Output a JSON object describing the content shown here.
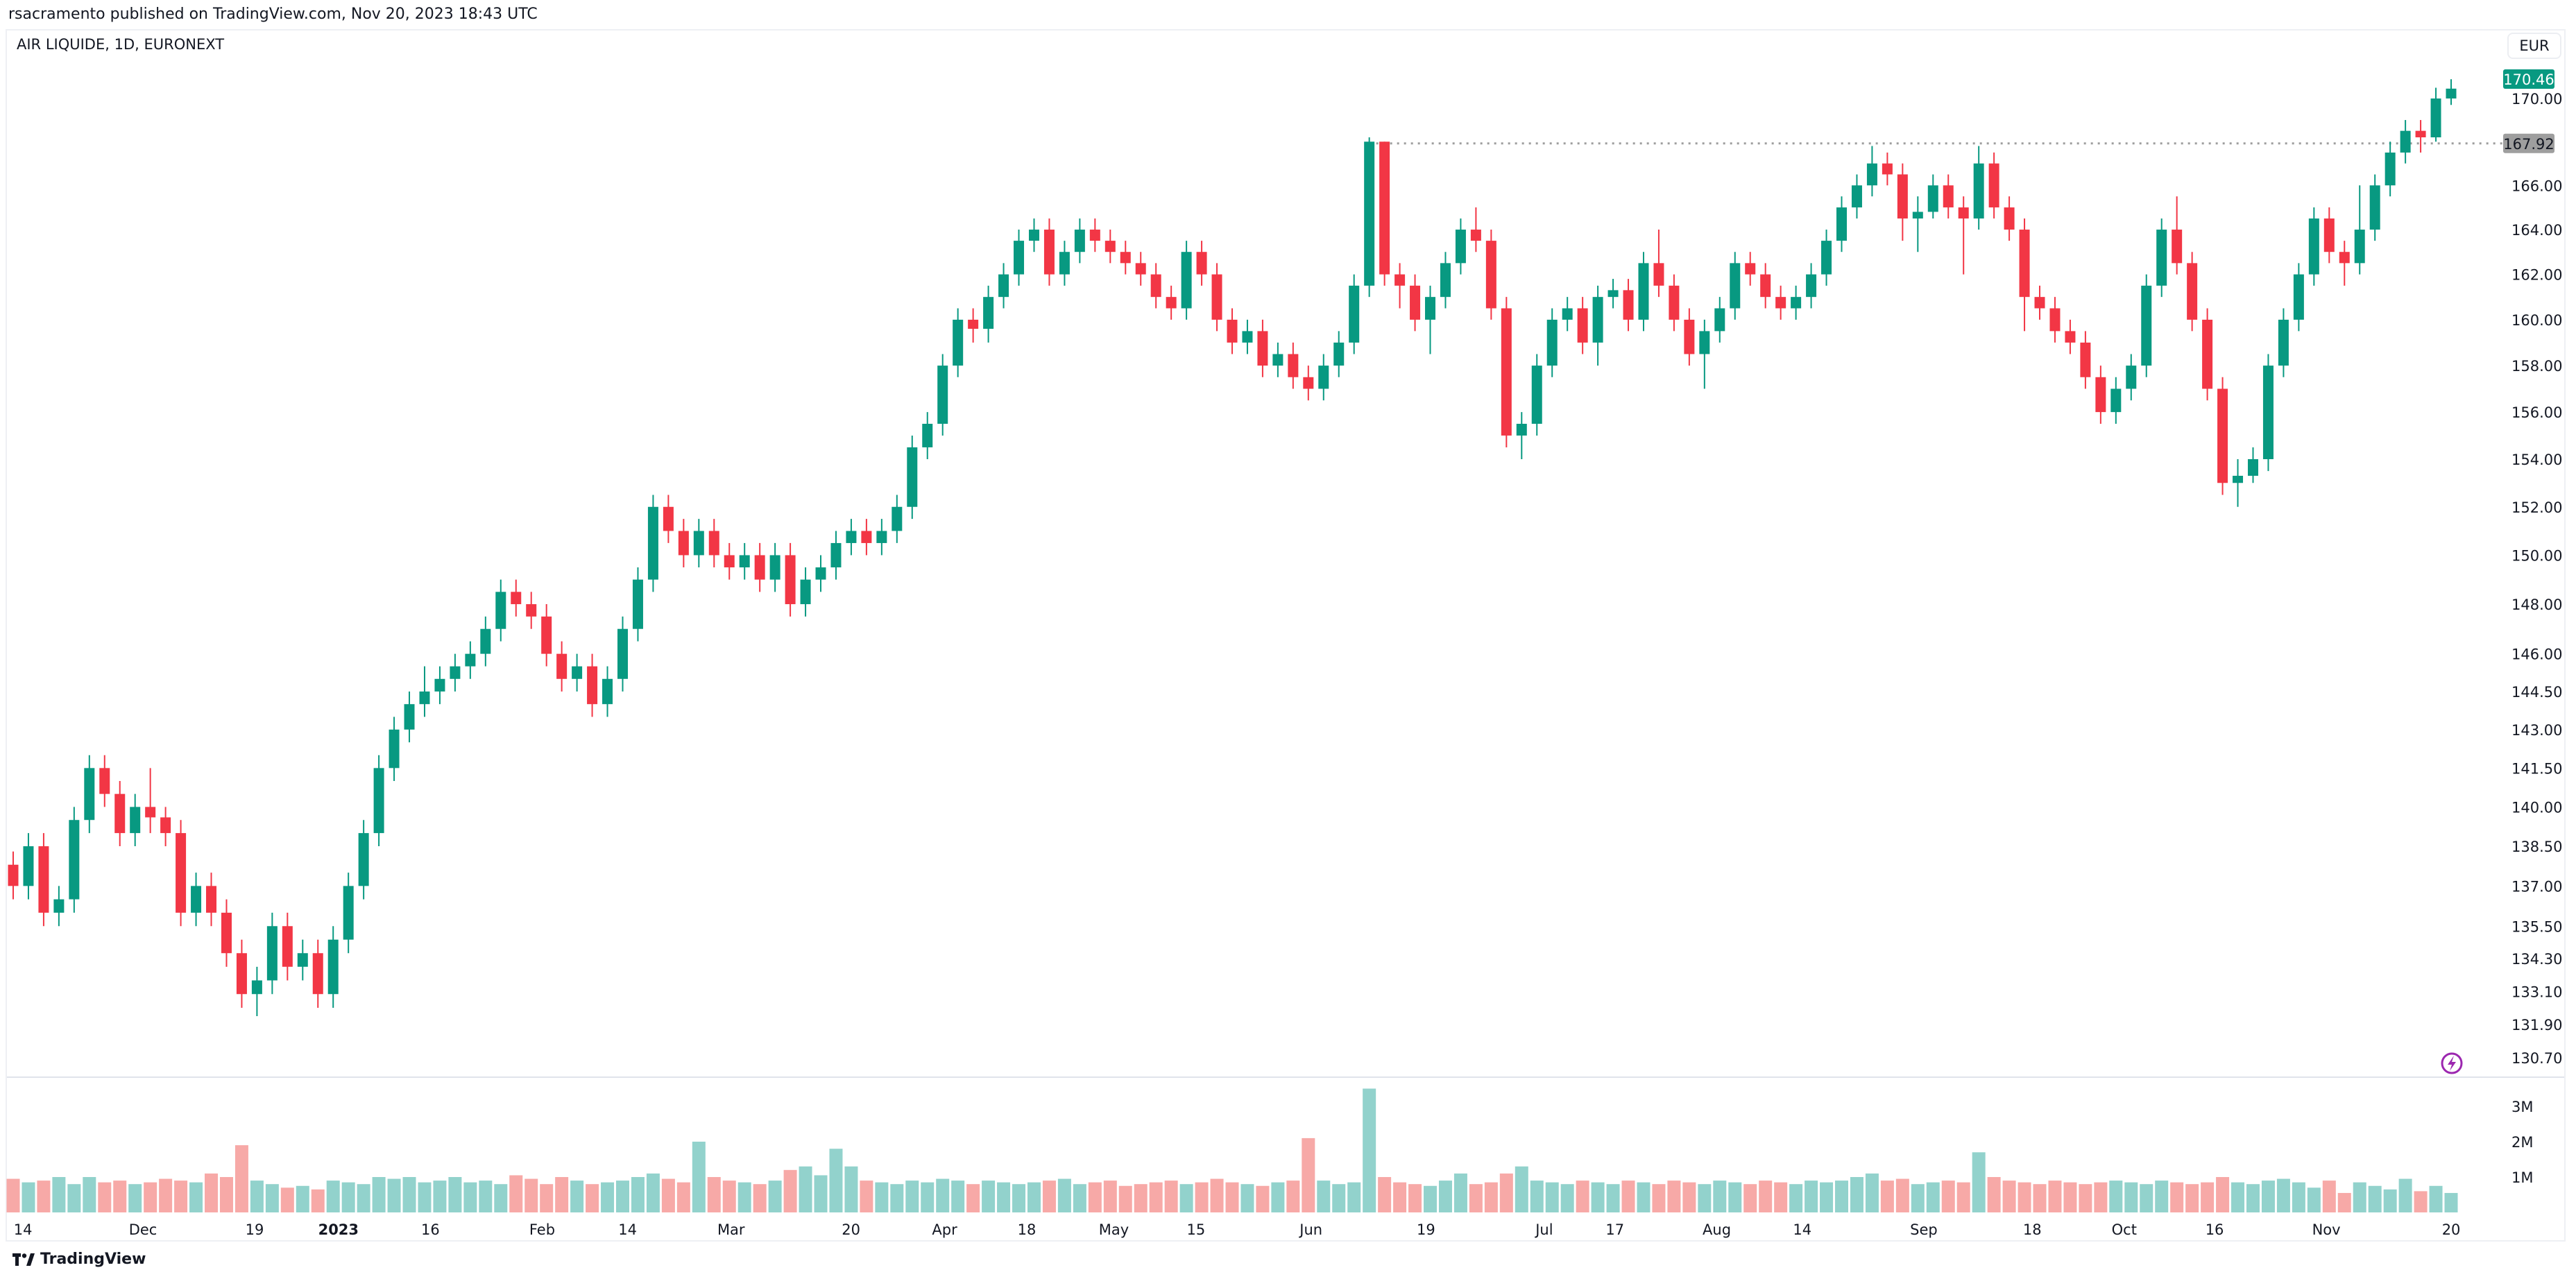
{
  "header": {
    "publisher_line": "rsacramento published on TradingView.com, Nov 20, 2023 18:43 UTC",
    "symbol_line": "AIR LIQUIDE, 1D, EURONEXT",
    "currency": "EUR"
  },
  "footer": {
    "brand": "TradingView",
    "logo_icon": "tradingview-logo-icon"
  },
  "colors": {
    "up": "#089981",
    "down": "#f23645",
    "volume_up": "#92d2cc",
    "volume_down": "#f7a9a7",
    "last_price_label": "#089981",
    "level_label": "#9e9e9e",
    "alert_icon": "#9c27b0"
  },
  "chart_data": {
    "type": "candlestick",
    "title": "AIR LIQUIDE, 1D, EURONEXT",
    "price_scale": "log",
    "ylim": [
      130.2,
      171.3
    ],
    "grid": false,
    "price_ticks": [
      "170.00",
      "166.00",
      "164.00",
      "162.00",
      "160.00",
      "158.00",
      "156.00",
      "154.00",
      "152.00",
      "150.00",
      "148.00",
      "146.00",
      "144.50",
      "143.00",
      "141.50",
      "140.00",
      "138.50",
      "137.00",
      "135.50",
      "134.30",
      "133.10",
      "131.90",
      "130.70"
    ],
    "last_price": 170.46,
    "horizontal_level": 167.92,
    "time_ticks": [
      "14",
      "Dec",
      "19",
      "2023",
      "16",
      "Feb",
      "14",
      "Mar",
      "20",
      "Apr",
      "18",
      "May",
      "15",
      "Jun",
      "19",
      "Jul",
      "17",
      "Aug",
      "14",
      "Sep",
      "18",
      "Oct",
      "16",
      "Nov",
      "20"
    ],
    "volume_ticks": [
      "3M",
      "2M",
      "1M"
    ],
    "candles_ohlc": [
      [
        137.8,
        138.3,
        136.5,
        137
      ],
      [
        137,
        139,
        136.5,
        138.5
      ],
      [
        138.5,
        139,
        135.5,
        136
      ],
      [
        136,
        137,
        135.5,
        136.5
      ],
      [
        136.5,
        140,
        136,
        139.5
      ],
      [
        139.5,
        142,
        139,
        141.5
      ],
      [
        141.5,
        142,
        140,
        140.5
      ],
      [
        140.5,
        141,
        138.5,
        139
      ],
      [
        139,
        140.5,
        138.5,
        140
      ],
      [
        140,
        141.5,
        139,
        139.6
      ],
      [
        139.6,
        140,
        138.5,
        139
      ],
      [
        139,
        139.5,
        135.5,
        136
      ],
      [
        136,
        137.5,
        135.5,
        137
      ],
      [
        137,
        137.5,
        135.5,
        136
      ],
      [
        136,
        136.5,
        134,
        134.5
      ],
      [
        134.5,
        135,
        132.5,
        133
      ],
      [
        133,
        134,
        132.2,
        133.5
      ],
      [
        133.5,
        136,
        133,
        135.5
      ],
      [
        135.5,
        136,
        133.5,
        134
      ],
      [
        134,
        135,
        133.5,
        134.5
      ],
      [
        134.5,
        135,
        132.5,
        133
      ],
      [
        133,
        135.5,
        132.5,
        135
      ],
      [
        135,
        137.5,
        134.5,
        137
      ],
      [
        137,
        139.5,
        136.5,
        139
      ],
      [
        139,
        142,
        138.5,
        141.5
      ],
      [
        141.5,
        143.5,
        141,
        143
      ],
      [
        143,
        144.5,
        142.5,
        144
      ],
      [
        144,
        145.5,
        143.5,
        144.5
      ],
      [
        144.5,
        145.5,
        144,
        145
      ],
      [
        145,
        146,
        144.5,
        145.5
      ],
      [
        145.5,
        146.5,
        145,
        146
      ],
      [
        146,
        147.5,
        145.5,
        147
      ],
      [
        147,
        149,
        146.5,
        148.5
      ],
      [
        148.5,
        149,
        147.5,
        148
      ],
      [
        148,
        148.5,
        147,
        147.5
      ],
      [
        147.5,
        148,
        145.5,
        146
      ],
      [
        146,
        146.5,
        144.5,
        145
      ],
      [
        145,
        146,
        144.5,
        145.5
      ],
      [
        145.5,
        146,
        143.5,
        144
      ],
      [
        144,
        145.5,
        143.5,
        145
      ],
      [
        145,
        147.5,
        144.5,
        147
      ],
      [
        147,
        149.5,
        146.5,
        149
      ],
      [
        149,
        152.5,
        148.5,
        152
      ],
      [
        152,
        152.5,
        150.5,
        151
      ],
      [
        151,
        151.5,
        149.5,
        150
      ],
      [
        150,
        151.5,
        149.5,
        151
      ],
      [
        151,
        151.5,
        149.5,
        150
      ],
      [
        150,
        150.5,
        149,
        149.5
      ],
      [
        149.5,
        150.5,
        149,
        150
      ],
      [
        150,
        150.5,
        148.5,
        149
      ],
      [
        149,
        150.5,
        148.5,
        150
      ],
      [
        150,
        150.5,
        147.5,
        148
      ],
      [
        148,
        149.5,
        147.5,
        149
      ],
      [
        149,
        150,
        148.5,
        149.5
      ],
      [
        149.5,
        151,
        149,
        150.5
      ],
      [
        150.5,
        151.5,
        150,
        151
      ],
      [
        151,
        151.5,
        150,
        150.5
      ],
      [
        150.5,
        151.5,
        150,
        151
      ],
      [
        151,
        152.5,
        150.5,
        152
      ],
      [
        152,
        155,
        151.5,
        154.5
      ],
      [
        154.5,
        156,
        154,
        155.5
      ],
      [
        155.5,
        158.5,
        155,
        158
      ],
      [
        158,
        160.5,
        157.5,
        160
      ],
      [
        160,
        160.5,
        159,
        159.6
      ],
      [
        159.6,
        161.5,
        159,
        161
      ],
      [
        161,
        162.5,
        160.5,
        162
      ],
      [
        162,
        164,
        161.5,
        163.5
      ],
      [
        163.5,
        164.5,
        163,
        164
      ],
      [
        164,
        164.5,
        161.5,
        162
      ],
      [
        162,
        163.5,
        161.5,
        163
      ],
      [
        163,
        164.5,
        162.5,
        164
      ],
      [
        164,
        164.5,
        163,
        163.5
      ],
      [
        163.5,
        164,
        162.5,
        163
      ],
      [
        163,
        163.5,
        162,
        162.5
      ],
      [
        162.5,
        163,
        161.5,
        162
      ],
      [
        162,
        162.5,
        160.5,
        161
      ],
      [
        161,
        161.5,
        160,
        160.5
      ],
      [
        160.5,
        163.5,
        160,
        163
      ],
      [
        163,
        163.5,
        161.5,
        162
      ],
      [
        162,
        162.5,
        159.5,
        160
      ],
      [
        160,
        160.5,
        158.5,
        159
      ],
      [
        159,
        160,
        158.5,
        159.5
      ],
      [
        159.5,
        160,
        157.5,
        158
      ],
      [
        158,
        159,
        157.5,
        158.5
      ],
      [
        158.5,
        159,
        157,
        157.5
      ],
      [
        157.5,
        158,
        156.5,
        157
      ],
      [
        157,
        158.5,
        156.5,
        158
      ],
      [
        158,
        159.5,
        157.5,
        159
      ],
      [
        159,
        162,
        158.5,
        161.5
      ],
      [
        161.5,
        168.2,
        161,
        168
      ],
      [
        168,
        168,
        161.5,
        162
      ],
      [
        162,
        162.5,
        160.5,
        161.5
      ],
      [
        161.5,
        162,
        159.5,
        160
      ],
      [
        160,
        161.5,
        158.5,
        161
      ],
      [
        161,
        163,
        160.5,
        162.5
      ],
      [
        162.5,
        164.5,
        162,
        164
      ],
      [
        164,
        165,
        163,
        163.5
      ],
      [
        163.5,
        164,
        160,
        160.5
      ],
      [
        160.5,
        161,
        154.5,
        155
      ],
      [
        155,
        156,
        154,
        155.5
      ],
      [
        155.5,
        158.5,
        155,
        158
      ],
      [
        158,
        160.5,
        157.5,
        160
      ],
      [
        160,
        161,
        159.5,
        160.5
      ],
      [
        160.5,
        161,
        158.5,
        159
      ],
      [
        159,
        161.5,
        158,
        161
      ],
      [
        161,
        161.8,
        160.5,
        161.3
      ],
      [
        161.3,
        161.8,
        159.5,
        160
      ],
      [
        160,
        163,
        159.5,
        162.5
      ],
      [
        162.5,
        164,
        161,
        161.5
      ],
      [
        161.5,
        162,
        159.5,
        160
      ],
      [
        160,
        160.5,
        158,
        158.5
      ],
      [
        158.5,
        160,
        157,
        159.5
      ],
      [
        159.5,
        161,
        159,
        160.5
      ],
      [
        160.5,
        163,
        160,
        162.5
      ],
      [
        162.5,
        163,
        161.5,
        162
      ],
      [
        162,
        162.5,
        160.5,
        161
      ],
      [
        161,
        161.5,
        160,
        160.5
      ],
      [
        160.5,
        161.5,
        160,
        161
      ],
      [
        161,
        162.5,
        160.5,
        162
      ],
      [
        162,
        164,
        161.5,
        163.5
      ],
      [
        163.5,
        165.5,
        163,
        165
      ],
      [
        165,
        166.5,
        164.5,
        166
      ],
      [
        166,
        167.8,
        165.5,
        167
      ],
      [
        167,
        167.5,
        166,
        166.5
      ],
      [
        166.5,
        167,
        163.5,
        164.5
      ],
      [
        164.5,
        165.5,
        163,
        164.8
      ],
      [
        164.8,
        166.5,
        164.5,
        166
      ],
      [
        166,
        166.5,
        164.5,
        165
      ],
      [
        165,
        165.5,
        162,
        164.5
      ],
      [
        164.5,
        167.8,
        164,
        167
      ],
      [
        167,
        167.5,
        164.5,
        165
      ],
      [
        165,
        165.5,
        163.5,
        164
      ],
      [
        164,
        164.5,
        159.5,
        161
      ],
      [
        161,
        161.5,
        160,
        160.5
      ],
      [
        160.5,
        161,
        159,
        159.5
      ],
      [
        159.5,
        160,
        158.5,
        159
      ],
      [
        159,
        159.5,
        157,
        157.5
      ],
      [
        157.5,
        158,
        155.5,
        156
      ],
      [
        156,
        157.5,
        155.5,
        157
      ],
      [
        157,
        158.5,
        156.5,
        158
      ],
      [
        158,
        162,
        157.5,
        161.5
      ],
      [
        161.5,
        164.5,
        161,
        164
      ],
      [
        164,
        165.5,
        162,
        162.5
      ],
      [
        162.5,
        163,
        159.5,
        160
      ],
      [
        160,
        160.5,
        156.5,
        157
      ],
      [
        157,
        157.5,
        152.5,
        153
      ],
      [
        153,
        154,
        152,
        153.3
      ],
      [
        153.3,
        154.5,
        153,
        154
      ],
      [
        154,
        158.5,
        153.5,
        158
      ],
      [
        158,
        160.5,
        157.5,
        160
      ],
      [
        160,
        162.5,
        159.5,
        162
      ],
      [
        162,
        165,
        161.5,
        164.5
      ],
      [
        164.5,
        165,
        162.5,
        163
      ],
      [
        163,
        163.5,
        161.5,
        162.5
      ],
      [
        162.5,
        166,
        162,
        164
      ],
      [
        164,
        166.5,
        163.5,
        166
      ],
      [
        166,
        168,
        165.5,
        167.5
      ],
      [
        167.5,
        169,
        167,
        168.5
      ],
      [
        168.5,
        169,
        167.5,
        168.2
      ],
      [
        168.2,
        170.5,
        168,
        170
      ],
      [
        170,
        170.9,
        169.7,
        170.46
      ]
    ],
    "volume_millions": [
      0.95,
      0.85,
      0.9,
      1.0,
      0.8,
      1.0,
      0.85,
      0.9,
      0.8,
      0.85,
      0.95,
      0.9,
      0.85,
      1.1,
      1.0,
      1.9,
      0.9,
      0.8,
      0.7,
      0.75,
      0.65,
      0.9,
      0.85,
      0.8,
      1.0,
      0.95,
      1.0,
      0.85,
      0.9,
      1.0,
      0.85,
      0.9,
      0.8,
      1.05,
      0.95,
      0.8,
      1.0,
      0.9,
      0.8,
      0.85,
      0.9,
      1.0,
      1.1,
      0.95,
      0.85,
      2.0,
      1.0,
      0.9,
      0.85,
      0.8,
      0.9,
      1.2,
      1.3,
      1.05,
      1.8,
      1.3,
      0.9,
      0.85,
      0.8,
      0.9,
      0.85,
      0.95,
      0.9,
      0.8,
      0.9,
      0.85,
      0.8,
      0.85,
      0.9,
      0.95,
      0.8,
      0.85,
      0.9,
      0.75,
      0.8,
      0.85,
      0.9,
      0.8,
      0.85,
      0.95,
      0.85,
      0.8,
      0.75,
      0.85,
      0.9,
      2.1,
      0.9,
      0.8,
      0.85,
      3.5,
      1.0,
      0.85,
      0.8,
      0.75,
      0.9,
      1.1,
      0.8,
      0.85,
      1.1,
      1.3,
      0.9,
      0.85,
      0.8,
      0.9,
      0.85,
      0.8,
      0.9,
      0.85,
      0.8,
      0.9,
      0.85,
      0.8,
      0.9,
      0.85,
      0.8,
      0.9,
      0.85,
      0.8,
      0.9,
      0.85,
      0.9,
      1.0,
      1.1,
      0.9,
      0.95,
      0.8,
      0.85,
      0.9,
      0.85,
      1.7,
      1.0,
      0.9,
      0.85,
      0.8,
      0.9,
      0.85,
      0.8,
      0.85,
      0.9,
      0.85,
      0.8,
      0.9,
      0.85,
      0.8,
      0.85,
      1.0,
      0.85,
      0.8,
      0.9,
      0.95,
      0.85,
      0.7,
      0.9,
      0.55,
      0.85,
      0.75,
      0.65,
      0.95,
      0.6,
      0.75,
      0.55
    ]
  }
}
